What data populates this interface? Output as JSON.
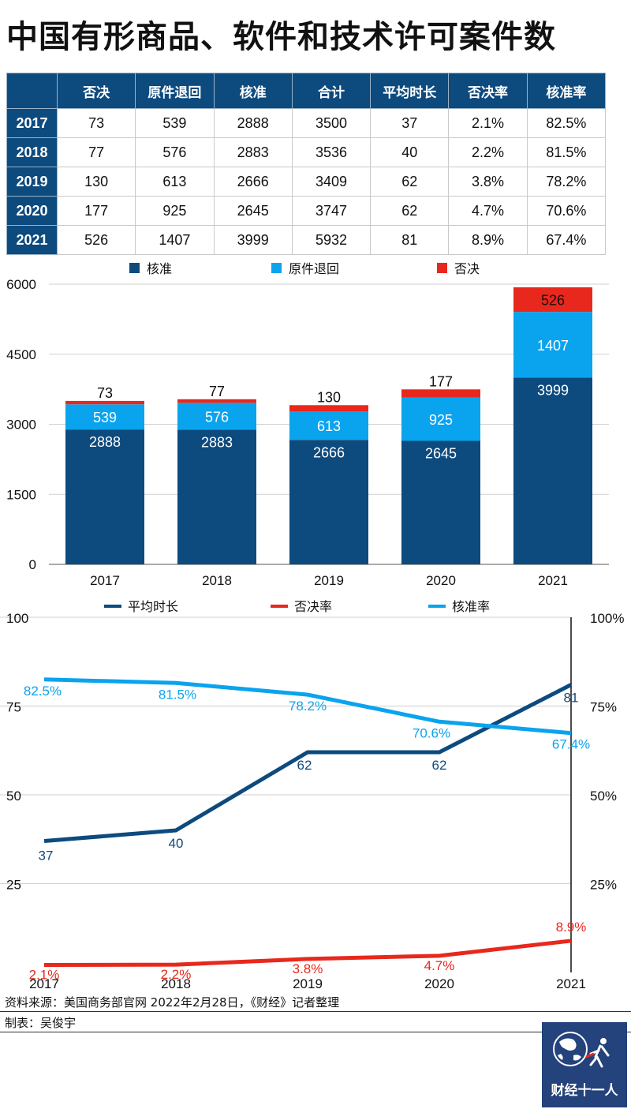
{
  "title": "中国有形商品、软件和技术许可案件数",
  "table": {
    "headers": [
      "",
      "否决",
      "原件退回",
      "核准",
      "合计",
      "平均时长",
      "否决率",
      "核准率"
    ],
    "rows": [
      [
        "2017",
        "73",
        "539",
        "2888",
        "3500",
        "37",
        "2.1%",
        "82.5%"
      ],
      [
        "2018",
        "77",
        "576",
        "2883",
        "3536",
        "40",
        "2.2%",
        "81.5%"
      ],
      [
        "2019",
        "130",
        "613",
        "2666",
        "3409",
        "62",
        "3.8%",
        "78.2%"
      ],
      [
        "2020",
        "177",
        "925",
        "2645",
        "3747",
        "62",
        "4.7%",
        "70.6%"
      ],
      [
        "2021",
        "526",
        "1407",
        "3999",
        "5932",
        "81",
        "8.9%",
        "67.4%"
      ]
    ]
  },
  "chart_data": [
    {
      "type": "bar",
      "stacked": true,
      "categories": [
        "2017",
        "2018",
        "2019",
        "2020",
        "2021"
      ],
      "series": [
        {
          "name": "核准",
          "color": "#0d4a7e",
          "values": [
            2888,
            2883,
            2666,
            2645,
            3999
          ]
        },
        {
          "name": "原件退回",
          "color": "#0aa3ee",
          "values": [
            539,
            576,
            613,
            925,
            1407
          ]
        },
        {
          "name": "否决",
          "color": "#e8281c",
          "values": [
            73,
            77,
            130,
            177,
            526
          ]
        }
      ],
      "ylim": [
        0,
        6000
      ],
      "yticks": [
        0,
        1500,
        3000,
        4500,
        6000
      ],
      "legend": "top",
      "grid": true
    },
    {
      "type": "line",
      "categories": [
        "2017",
        "2018",
        "2019",
        "2020",
        "2021"
      ],
      "series": [
        {
          "name": "平均时长",
          "axis": "left",
          "color": "#0d4a7e",
          "values": [
            37,
            40,
            62,
            62,
            81
          ],
          "labels": [
            "37",
            "40",
            "62",
            "62",
            "81"
          ]
        },
        {
          "name": "否决率",
          "axis": "right",
          "color": "#e8281c",
          "values": [
            2.1,
            2.2,
            3.8,
            4.7,
            8.9
          ],
          "labels": [
            "2.1%",
            "2.2%",
            "3.8%",
            "4.7%",
            "8.9%"
          ]
        },
        {
          "name": "核准率",
          "axis": "right",
          "color": "#0aa3ee",
          "values": [
            82.5,
            81.5,
            78.2,
            70.6,
            67.4
          ],
          "labels": [
            "82.5%",
            "81.5%",
            "78.2%",
            "70.6%",
            "67.4%"
          ]
        }
      ],
      "ylim_left": [
        0,
        100
      ],
      "yticks_left": [
        "25",
        "50",
        "75",
        "100"
      ],
      "ylim_right": [
        0,
        100
      ],
      "yticks_right": [
        "25%",
        "50%",
        "75%",
        "100%"
      ],
      "legend": "top",
      "grid": true
    }
  ],
  "source": "资料来源：美国商务部官网 2022年2月28日，《财经》记者整理",
  "maker": "制表：吴俊宇",
  "logo": {
    "text": "财经十一人",
    "icon": "globe-icon",
    "color": "#24427b"
  }
}
